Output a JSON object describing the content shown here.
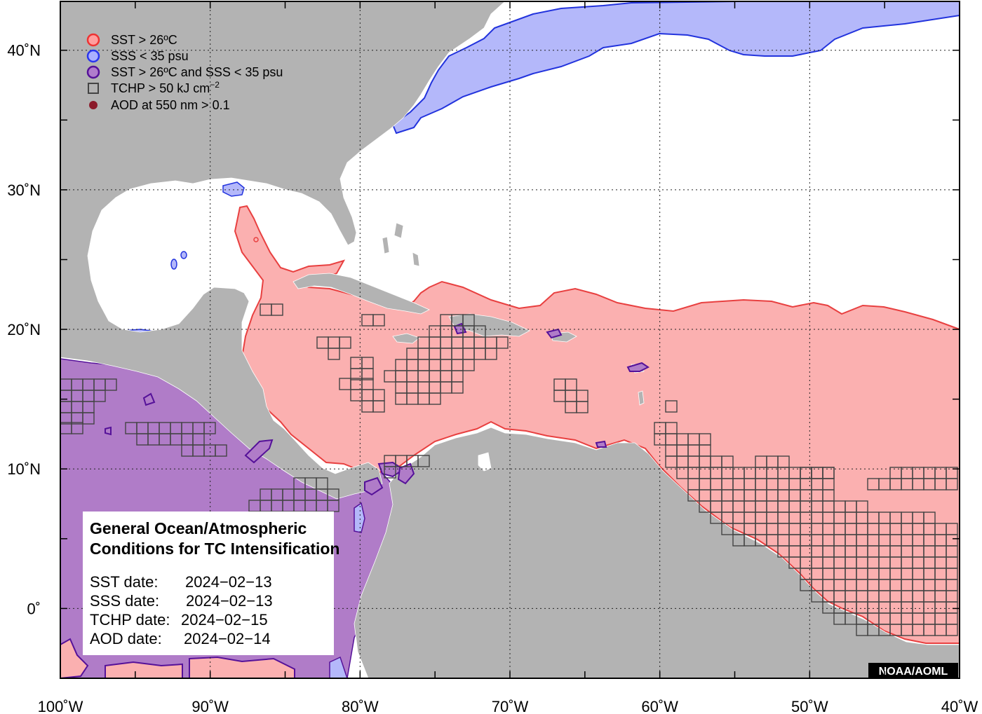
{
  "legend": {
    "items": [
      {
        "label": "SST > 26ºC",
        "symbol": "circle",
        "fill": "#ff9e9e",
        "stroke": "#ee3333"
      },
      {
        "label": "SSS < 35 psu",
        "symbol": "circle",
        "fill": "#aab0ff",
        "stroke": "#2a36ee"
      },
      {
        "label": "SST > 26ºC and SSS < 35 psu",
        "symbol": "circle",
        "fill": "#b07ccc",
        "stroke": "#551199"
      },
      {
        "label": "TCHP > 50 kJ cm",
        "label_sup": "−2",
        "symbol": "square",
        "stroke": "#444444"
      },
      {
        "label": "AOD at 550 nm > 0.1",
        "symbol": "dot",
        "fill": "#8b1a2a"
      }
    ]
  },
  "info_box": {
    "title_line1": "General Ocean/Atmospheric",
    "title_line2": "Conditions for TC Intensification",
    "rows": [
      {
        "label": "SST date:",
        "value": "2024−02−13"
      },
      {
        "label": "SSS date:",
        "value": "2024−02−13"
      },
      {
        "label": "TCHP date:",
        "value": "2024−02−15"
      },
      {
        "label": "AOD date:",
        "value": "2024−02−14"
      }
    ]
  },
  "credit": "NOAA/AOML",
  "axes": {
    "lon_labels": [
      "100˚W",
      "90˚W",
      "80˚W",
      "70˚W",
      "60˚W",
      "50˚W",
      "40˚W"
    ],
    "lat_labels": [
      "40˚N",
      "30˚N",
      "20˚N",
      "10˚N",
      "0˚"
    ],
    "lon_range": [
      -100,
      -40
    ],
    "lat_range": [
      -5,
      43.5
    ],
    "gridlines": true
  },
  "colors": {
    "land": "#b3b3b3",
    "ocean": "#ffffff",
    "sst": "#fbb0b0",
    "sst_edge": "#e84040",
    "sss": "#b4b8fa",
    "sss_edge": "#2233dd",
    "both": "#b07cc8",
    "both_edge": "#551199",
    "tchp": "#444444"
  }
}
